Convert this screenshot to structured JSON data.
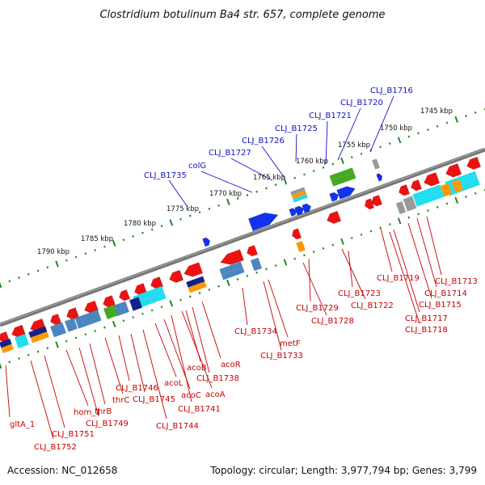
{
  "title": "Clostridium botulinum Ba4 str. 657, complete genome",
  "footer": {
    "accession": "Accession: NC_012658",
    "summary": "Topology: circular; Length: 3,977,794 bp; Genes: 3,799"
  },
  "colors": {
    "backbone": "#777777",
    "tick": "#228822",
    "forward_label": "#1010c8",
    "reverse_label": "#c80000",
    "feature_red": "#ee1111",
    "feature_blue": "#1133ee",
    "rna_cyan": "#22ddee",
    "rna_steel": "#4a86c0",
    "rna_green": "#44aa22",
    "rna_orange": "#ff9900",
    "rna_navy": "#112288",
    "rna_gray": "#999999"
  },
  "kbp_labels": [
    "1745 kbp",
    "1750 kbp",
    "1755 kbp",
    "1760 kbp",
    "1765 kbp",
    "1770 kbp",
    "1775 kbp",
    "1780 kbp",
    "1785 kbp",
    "1790 kbp"
  ],
  "forward_labels": [
    "CLJ_B1716",
    "CLJ_B1720",
    "CLJ_B1721",
    "CLJ_B1725",
    "CLJ_B1726",
    "CLJ_B1727",
    "colG",
    "CLJ_B1735"
  ],
  "reverse_labels": [
    "CLJ_B1713",
    "CLJ_B1714",
    "CLJ_B1715",
    "CLJ_B1717",
    "CLJ_B1718",
    "CLJ_B1719",
    "CLJ_B1722",
    "CLJ_B1723",
    "CLJ_B1728",
    "CLJ_B1729",
    "CLJ_B1733",
    "metF",
    "CLJ_B1734",
    "acoR",
    "CLJ_B1738",
    "acoA",
    "acoB",
    "CLJ_B1741",
    "acoC",
    "acoL",
    "CLJ_B1744",
    "CLJ_B1745",
    "CLJ_B1746",
    "thrC",
    "thrB",
    "CLJ_B1749",
    "hom_1",
    "CLJ_B1751",
    "CLJ_B1752",
    "gltA_1"
  ]
}
